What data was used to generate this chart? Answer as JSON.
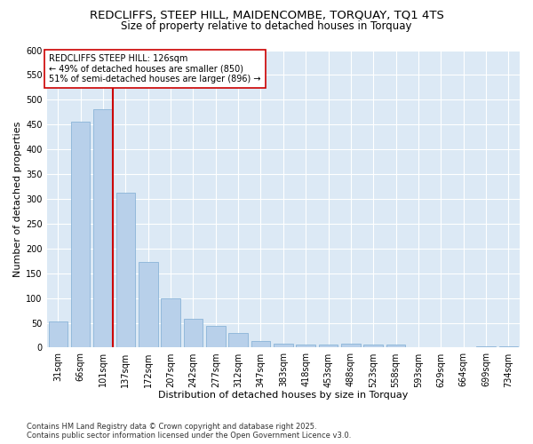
{
  "title": "REDCLIFFS, STEEP HILL, MAIDENCOMBE, TORQUAY, TQ1 4TS",
  "subtitle": "Size of property relative to detached houses in Torquay",
  "xlabel": "Distribution of detached houses by size in Torquay",
  "ylabel": "Number of detached properties",
  "categories": [
    "31sqm",
    "66sqm",
    "101sqm",
    "137sqm",
    "172sqm",
    "207sqm",
    "242sqm",
    "277sqm",
    "312sqm",
    "347sqm",
    "383sqm",
    "418sqm",
    "453sqm",
    "488sqm",
    "523sqm",
    "558sqm",
    "593sqm",
    "629sqm",
    "664sqm",
    "699sqm",
    "734sqm"
  ],
  "values": [
    53,
    455,
    480,
    313,
    172,
    100,
    58,
    43,
    30,
    14,
    8,
    7,
    7,
    8,
    6,
    7,
    1,
    0,
    0,
    2,
    3
  ],
  "bar_color": "#b8d0ea",
  "bar_edge_color": "#8ab4d8",
  "vline_color": "#cc0000",
  "annotation_text": "REDCLIFFS STEEP HILL: 126sqm\n← 49% of detached houses are smaller (850)\n51% of semi-detached houses are larger (896) →",
  "annotation_box_facecolor": "#ffffff",
  "annotation_box_edgecolor": "#cc0000",
  "figure_bg_color": "#ffffff",
  "plot_bg_color": "#dce9f5",
  "grid_color": "#ffffff",
  "footer_text": "Contains HM Land Registry data © Crown copyright and database right 2025.\nContains public sector information licensed under the Open Government Licence v3.0.",
  "ylim": [
    0,
    600
  ],
  "yticks": [
    0,
    50,
    100,
    150,
    200,
    250,
    300,
    350,
    400,
    450,
    500,
    550,
    600
  ],
  "title_fontsize": 9.5,
  "subtitle_fontsize": 8.5,
  "xlabel_fontsize": 8,
  "ylabel_fontsize": 8,
  "tick_fontsize": 7,
  "annotation_fontsize": 7,
  "footer_fontsize": 6
}
